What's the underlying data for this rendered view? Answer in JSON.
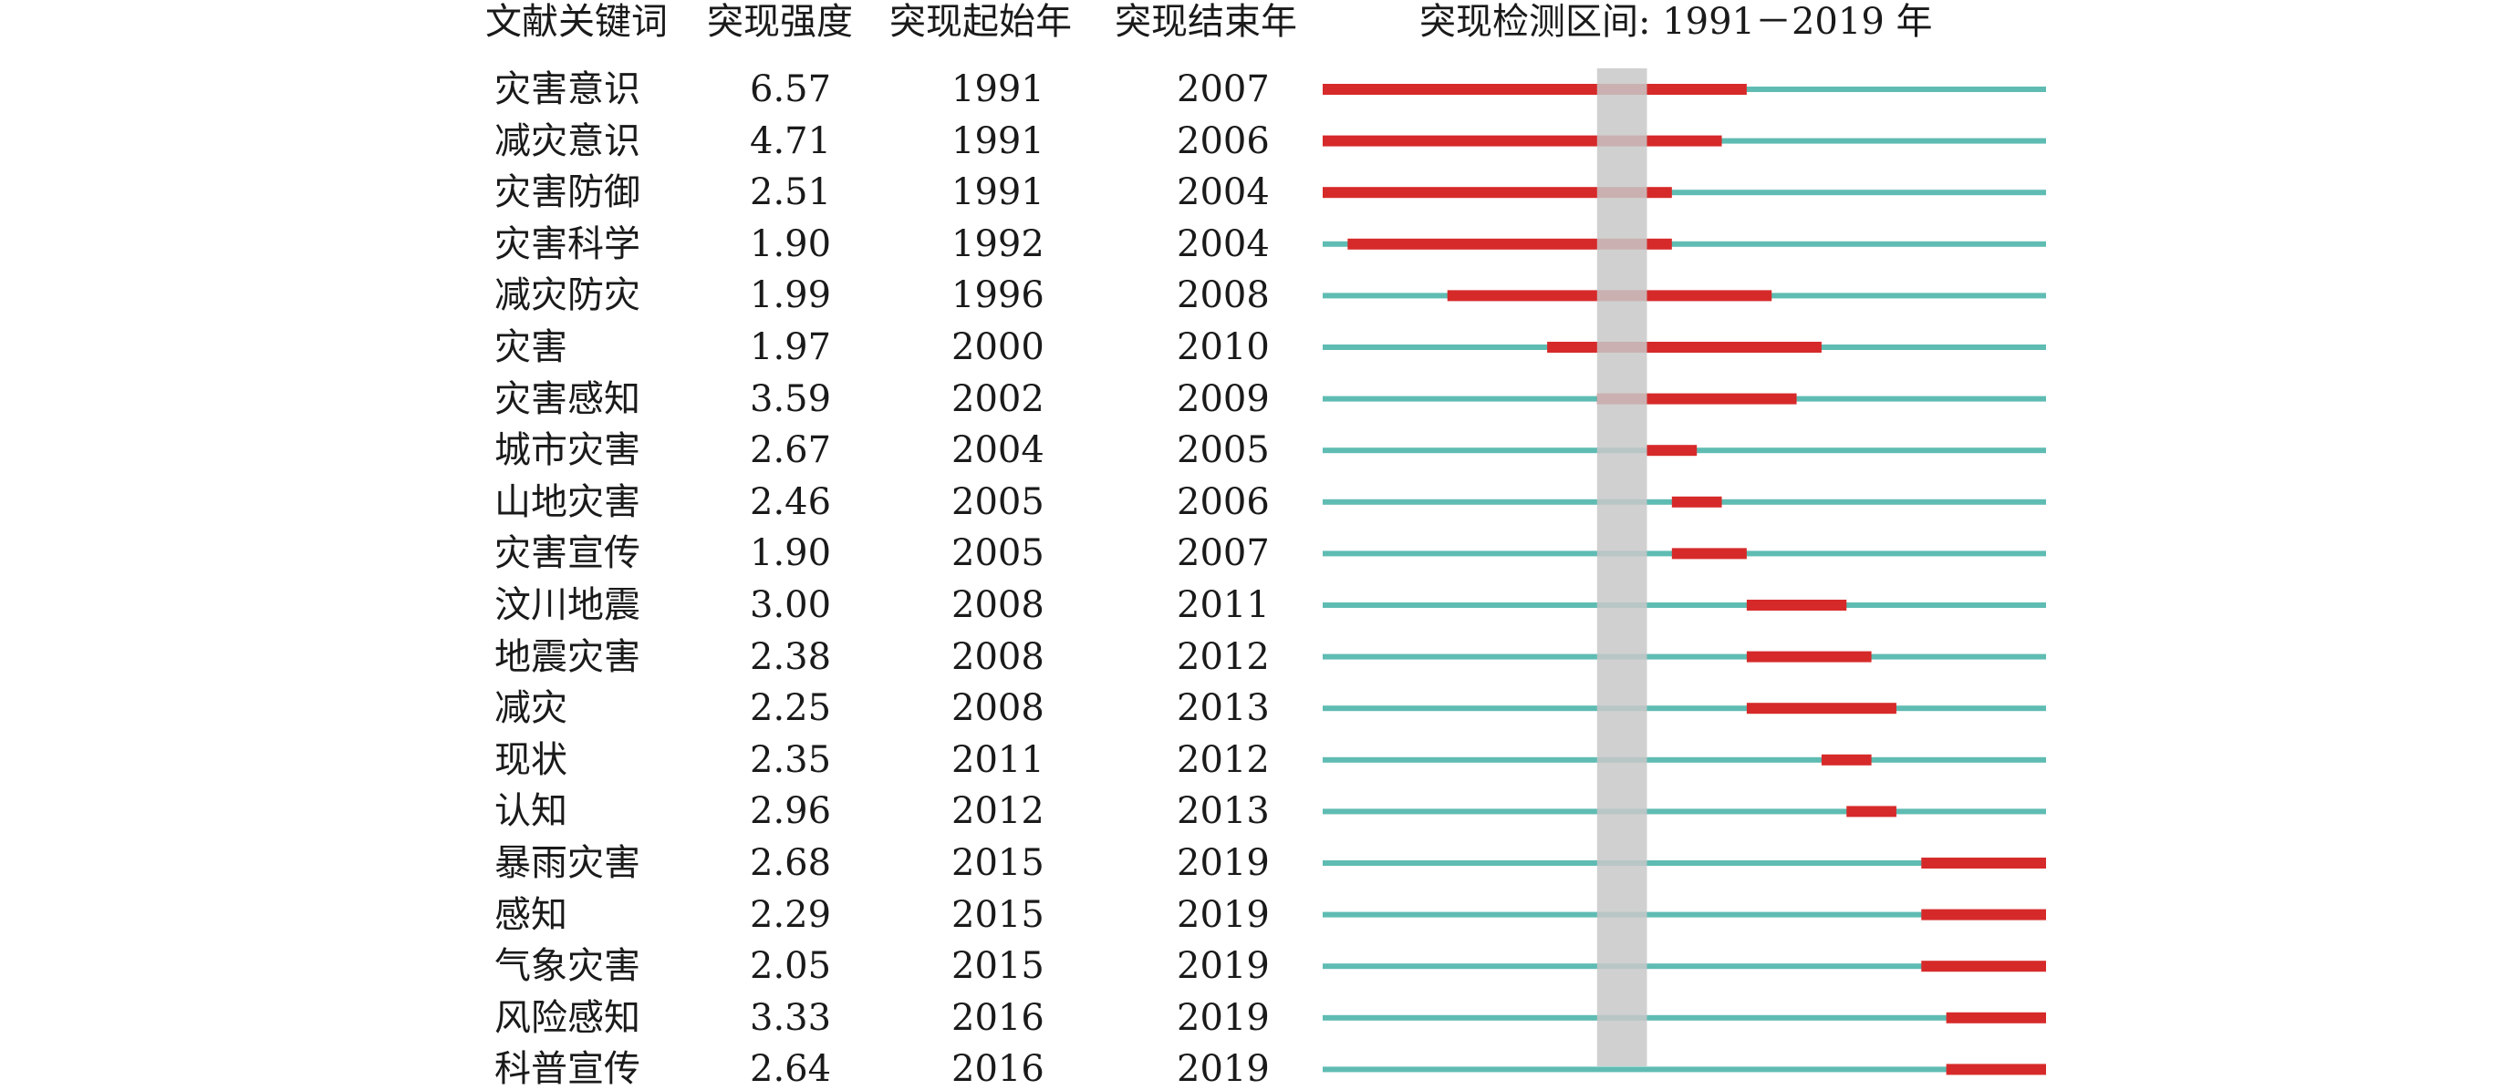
{
  "headers": {
    "keyword": "文献关键词",
    "strength": "突现强度",
    "begin": "突现起始年",
    "end": "突现结束年",
    "range": "突现检测区间: 1991－2019 年"
  },
  "colors": {
    "baseline": "#5fbcb3",
    "burst": "#d62a2a",
    "highlight": "#c8c8c8",
    "text": "#1a1a1a"
  },
  "chart_data": {
    "type": "table",
    "timeline": {
      "start_year": 1991,
      "end_year": 2019,
      "highlighted_years": [
        2002,
        2003
      ]
    },
    "columns": [
      "文献关键词",
      "突现强度",
      "突现起始年",
      "突现结束年"
    ],
    "rows": [
      {
        "keyword": "灾害意识",
        "strength": "6.57",
        "begin": 1991,
        "end": 2007
      },
      {
        "keyword": "减灾意识",
        "strength": "4.71",
        "begin": 1991,
        "end": 2006
      },
      {
        "keyword": "灾害防御",
        "strength": "2.51",
        "begin": 1991,
        "end": 2004
      },
      {
        "keyword": "灾害科学",
        "strength": "1.90",
        "begin": 1992,
        "end": 2004
      },
      {
        "keyword": "减灾防灾",
        "strength": "1.99",
        "begin": 1996,
        "end": 2008
      },
      {
        "keyword": "灾害",
        "strength": "1.97",
        "begin": 2000,
        "end": 2010
      },
      {
        "keyword": "灾害感知",
        "strength": "3.59",
        "begin": 2002,
        "end": 2009
      },
      {
        "keyword": "城市灾害",
        "strength": "2.67",
        "begin": 2004,
        "end": 2005
      },
      {
        "keyword": "山地灾害",
        "strength": "2.46",
        "begin": 2005,
        "end": 2006
      },
      {
        "keyword": "灾害宣传",
        "strength": "1.90",
        "begin": 2005,
        "end": 2007
      },
      {
        "keyword": "汶川地震",
        "strength": "3.00",
        "begin": 2008,
        "end": 2011
      },
      {
        "keyword": "地震灾害",
        "strength": "2.38",
        "begin": 2008,
        "end": 2012
      },
      {
        "keyword": "减灾",
        "strength": "2.25",
        "begin": 2008,
        "end": 2013
      },
      {
        "keyword": "现状",
        "strength": "2.35",
        "begin": 2011,
        "end": 2012
      },
      {
        "keyword": "认知",
        "strength": "2.96",
        "begin": 2012,
        "end": 2013
      },
      {
        "keyword": "暴雨灾害",
        "strength": "2.68",
        "begin": 2015,
        "end": 2019
      },
      {
        "keyword": "感知",
        "strength": "2.29",
        "begin": 2015,
        "end": 2019
      },
      {
        "keyword": "气象灾害",
        "strength": "2.05",
        "begin": 2015,
        "end": 2019
      },
      {
        "keyword": "风险感知",
        "strength": "3.33",
        "begin": 2016,
        "end": 2019
      },
      {
        "keyword": "科普宣传",
        "strength": "2.64",
        "begin": 2016,
        "end": 2019
      }
    ]
  }
}
